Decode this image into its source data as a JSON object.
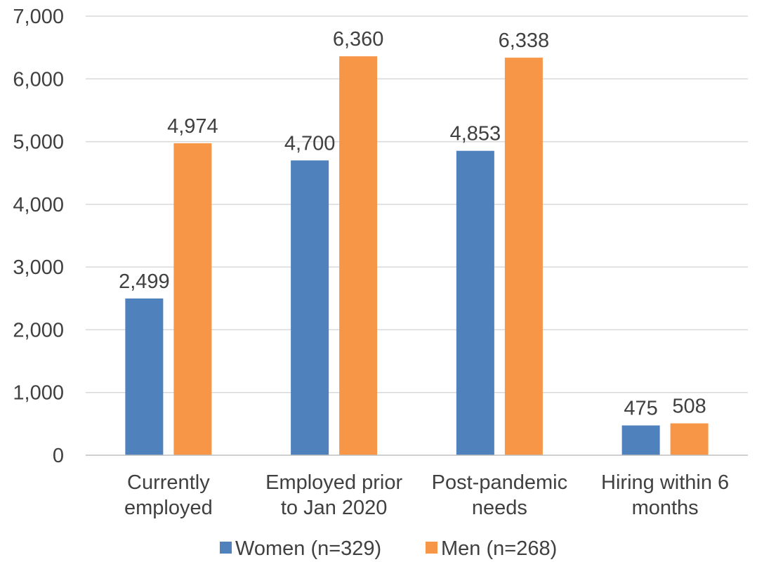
{
  "chart_data": {
    "type": "bar",
    "categories": [
      [
        "Currently",
        "employed"
      ],
      [
        "Employed prior",
        "to Jan 2020"
      ],
      [
        "Post-pandemic",
        "needs"
      ],
      [
        "Hiring within 6",
        "months"
      ]
    ],
    "series": [
      {
        "name": "Women (n=329)",
        "color": "#4f81bd",
        "values": [
          2499,
          4700,
          4853,
          475
        ],
        "labels": [
          "2,499",
          "4,700",
          "4,853",
          "475"
        ]
      },
      {
        "name": "Men (n=268)",
        "color": "#f79646",
        "values": [
          4974,
          6360,
          6338,
          508
        ],
        "labels": [
          "4,974",
          "6,360",
          "6,338",
          "508"
        ]
      }
    ],
    "title": "",
    "xlabel": "",
    "ylabel": "",
    "ylim": [
      0,
      7000
    ],
    "yticks": [
      0,
      1000,
      2000,
      3000,
      4000,
      5000,
      6000,
      7000
    ],
    "ytick_labels": [
      "0",
      "1,000",
      "2,000",
      "3,000",
      "4,000",
      "5,000",
      "6,000",
      "7,000"
    ],
    "grid": true,
    "legend_position": "bottom"
  }
}
